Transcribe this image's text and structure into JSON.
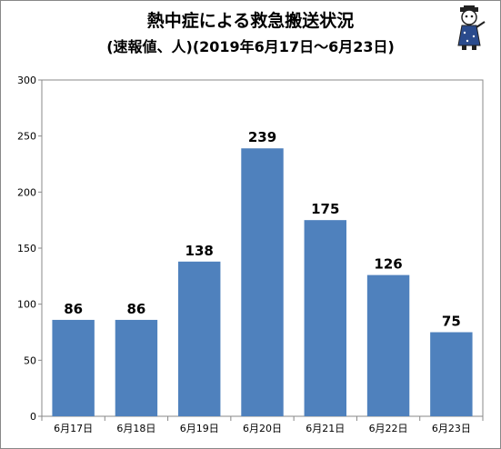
{
  "title": "熱中症による救急搬送状況",
  "subtitle": "(速報値、人)(2019年6月17日～6月23日)",
  "chart_data": {
    "type": "bar",
    "title": "熱中症による救急搬送状況",
    "subtitle": "(速報値、人)(2019年6月17日～6月23日)",
    "categories": [
      "6月17日",
      "6月18日",
      "6月19日",
      "6月20日",
      "6月21日",
      "6月22日",
      "6月23日"
    ],
    "values": [
      86,
      86,
      138,
      239,
      175,
      126,
      75
    ],
    "ylim": [
      0,
      300
    ],
    "yticks": [
      0,
      50,
      100,
      150,
      200,
      250,
      300
    ],
    "grid": false,
    "legend": "none",
    "bar_color": "#4f81bd"
  }
}
